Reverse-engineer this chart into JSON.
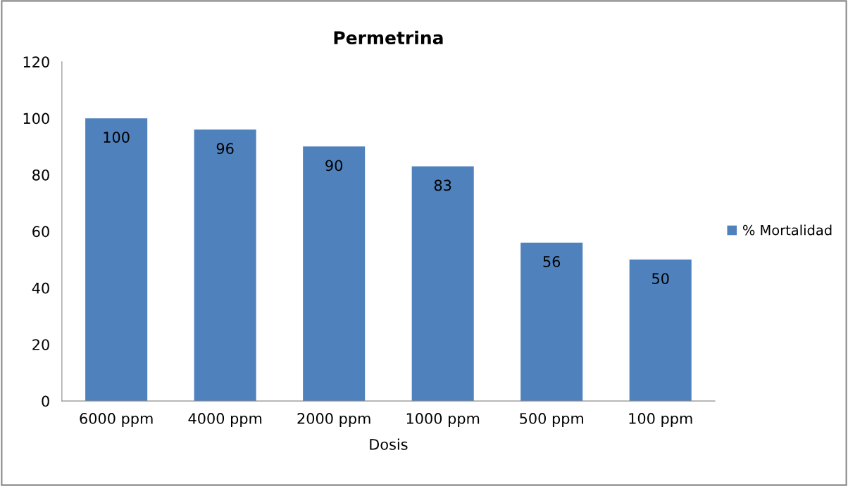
{
  "chart_data": {
    "type": "bar",
    "title": "Permetrina",
    "xlabel": "Dosis",
    "categories": [
      "6000 ppm",
      "4000 ppm",
      "2000 ppm",
      "1000 ppm",
      "500 ppm",
      "100 ppm"
    ],
    "series": [
      {
        "name": "% Mortalidad",
        "color": "#4f81bd",
        "values": [
          100,
          96,
          90,
          83,
          56,
          50
        ]
      }
    ],
    "ylim": [
      0,
      120
    ],
    "yticks": [
      0,
      20,
      40,
      60,
      80,
      100,
      120
    ],
    "data_labels": true,
    "legend": "right",
    "grid": false
  }
}
